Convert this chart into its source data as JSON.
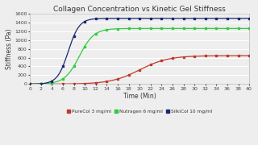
{
  "title": "Collagen Concentration vs Kinetic Gel Stiffness",
  "xlabel": "Time (Min)",
  "ylabel": "Stiffness (Pa)",
  "xlim": [
    0,
    40
  ],
  "ylim": [
    0,
    1600
  ],
  "yticks": [
    0,
    200,
    400,
    600,
    800,
    1000,
    1200,
    1400,
    1600
  ],
  "xticks": [
    0,
    2,
    4,
    6,
    8,
    10,
    12,
    14,
    16,
    18,
    20,
    22,
    24,
    26,
    28,
    30,
    32,
    34,
    36,
    38,
    40
  ],
  "series": [
    {
      "label": "PureCol 3 mg/ml",
      "color": "#c0392b",
      "plateau": 645,
      "midpoint": 20,
      "steepness": 0.38
    },
    {
      "label": "Nutragen 6 mg/ml",
      "color": "#2ecc40",
      "plateau": 1260,
      "midpoint": 9,
      "steepness": 0.75
    },
    {
      "label": "SilkiCol 10 mg/ml",
      "color": "#1a2870",
      "plateau": 1490,
      "midpoint": 7,
      "steepness": 1.0
    }
  ],
  "background_color": "#eeeeee",
  "grid_color": "#ffffff",
  "title_fontsize": 6.5,
  "axis_fontsize": 5.5,
  "tick_fontsize": 4.5,
  "legend_fontsize": 4.2
}
